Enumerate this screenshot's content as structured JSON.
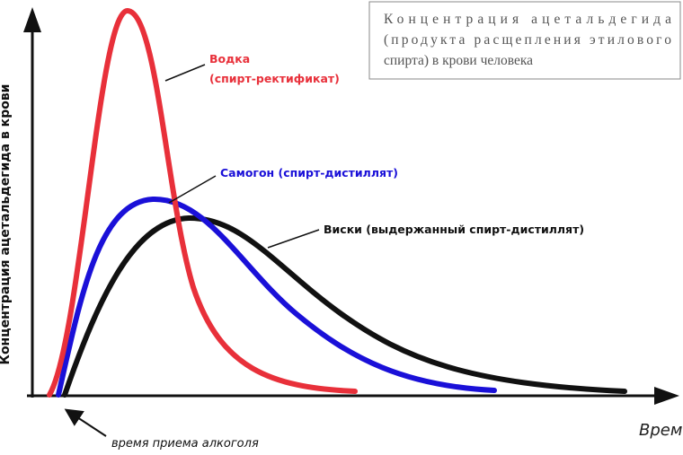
{
  "legend_box": {
    "lines": [
      "Концентрация ацетальдегида",
      "(продукта расщепления этилового",
      "спирта) в крови человека"
    ]
  },
  "y_axis_label": "Концентрация ацетальдегида в крови",
  "x_axis_label": "Врем",
  "curves": [
    {
      "label_lines": [
        "Водка",
        "(спирт-ректификат)"
      ]
    },
    {
      "label": "Самогон (спирт-дистиллят)"
    },
    {
      "label": "Виски (выдержанный спирт-дистиллят)"
    }
  ],
  "intake_note": "время приема алкоголя"
}
